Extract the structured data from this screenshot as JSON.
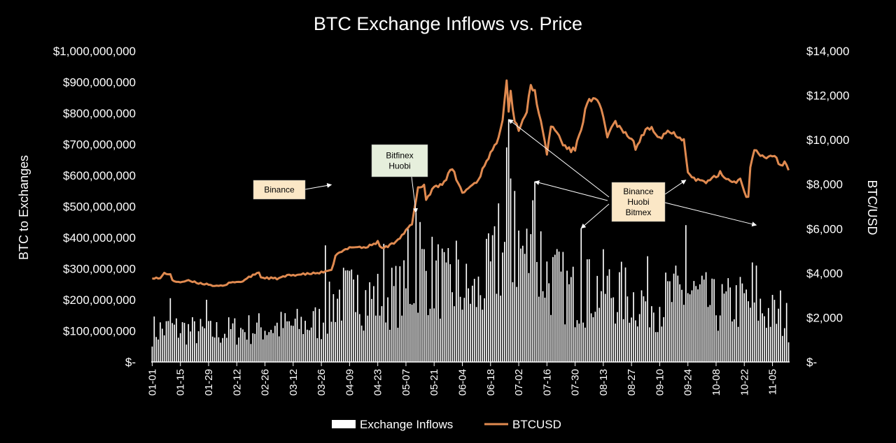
{
  "colors": {
    "background": "#000000",
    "bars": "#ffffff",
    "price_line": "#e08a50",
    "annotation_fill": "#fbe7c6",
    "annotation_fill_alt": "#e6efdc",
    "text": "#ffffff"
  },
  "chart_data": {
    "type": "bar",
    "combo": "bar-line",
    "title": "BTC Exchange Inflows vs. Price",
    "ylabel": "BTC to Exchanges",
    "y2label": "BTC/USD",
    "ylim": [
      0,
      1000000000
    ],
    "y2lim": [
      0,
      14000
    ],
    "grid": false,
    "legend_position": "bottom",
    "y_ticks": [
      "$-",
      "$100,000,000",
      "$200,000,000",
      "$300,000,000",
      "$400,000,000",
      "$500,000,000",
      "$600,000,000",
      "$700,000,000",
      "$800,000,000",
      "$900,000,000",
      "$1,000,000,000"
    ],
    "y2_ticks": [
      "$-",
      "$2,000",
      "$4,000",
      "$6,000",
      "$8,000",
      "$10,000",
      "$12,000",
      "$14,000"
    ],
    "x_ticks": [
      "01-01",
      "01-15",
      "01-29",
      "02-12",
      "02-26",
      "03-12",
      "03-26",
      "04-09",
      "04-23",
      "05-07",
      "05-21",
      "06-04",
      "06-18",
      "07-02",
      "07-16",
      "07-30",
      "08-13",
      "08-27",
      "09-10",
      "09-24",
      "10-08",
      "10-22",
      "11-05"
    ],
    "x_start": "2019-01-01",
    "x_end": "2019-11-13",
    "series": [
      {
        "name": "Exchange Inflows",
        "type": "bar",
        "axis": "left",
        "profile": [
          [
            "2019-01-01",
            110000000
          ],
          [
            "2019-01-15",
            115000000
          ],
          [
            "2019-01-29",
            100000000
          ],
          [
            "2019-02-12",
            110000000
          ],
          [
            "2019-02-26",
            120000000
          ],
          [
            "2019-03-12",
            125000000
          ],
          [
            "2019-03-26",
            140000000
          ],
          [
            "2019-04-03",
            230000000
          ],
          [
            "2019-04-23",
            220000000
          ],
          [
            "2019-05-07",
            240000000
          ],
          [
            "2019-05-14",
            330000000
          ],
          [
            "2019-05-28",
            270000000
          ],
          [
            "2019-06-11",
            230000000
          ],
          [
            "2019-06-20",
            330000000
          ],
          [
            "2019-06-27",
            420000000
          ],
          [
            "2019-07-04",
            380000000
          ],
          [
            "2019-07-16",
            300000000
          ],
          [
            "2019-07-30",
            230000000
          ],
          [
            "2019-08-13",
            260000000
          ],
          [
            "2019-08-27",
            220000000
          ],
          [
            "2019-09-10",
            210000000
          ],
          [
            "2019-09-24",
            240000000
          ],
          [
            "2019-10-08",
            190000000
          ],
          [
            "2019-10-22",
            210000000
          ],
          [
            "2019-11-13",
            140000000
          ]
        ],
        "spikes": [
          [
            "2019-01-10",
            205000000
          ],
          [
            "2019-01-28",
            200000000
          ],
          [
            "2019-03-28",
            375000000
          ],
          [
            "2019-04-13",
            280000000
          ],
          [
            "2019-04-26",
            380000000
          ],
          [
            "2019-05-08",
            430000000
          ],
          [
            "2019-05-12",
            480000000
          ],
          [
            "2019-05-14",
            450000000
          ],
          [
            "2019-05-27",
            320000000
          ],
          [
            "2019-06-01",
            390000000
          ],
          [
            "2019-06-22",
            510000000
          ],
          [
            "2019-06-26",
            690000000
          ],
          [
            "2019-06-27",
            780000000
          ],
          [
            "2019-06-28",
            590000000
          ],
          [
            "2019-06-30",
            550000000
          ],
          [
            "2019-07-09",
            520000000
          ],
          [
            "2019-07-10",
            580000000
          ],
          [
            "2019-07-13",
            420000000
          ],
          [
            "2019-08-02",
            430000000
          ],
          [
            "2019-08-05",
            330000000
          ],
          [
            "2019-09-04",
            340000000
          ],
          [
            "2019-09-23",
            440000000
          ],
          [
            "2019-10-26",
            320000000
          ],
          [
            "2019-10-28",
            310000000
          ],
          [
            "2019-11-09",
            230000000
          ]
        ]
      },
      {
        "name": "BTCUSD",
        "type": "line",
        "axis": "right",
        "points": [
          [
            "2019-01-01",
            3800
          ],
          [
            "2019-01-05",
            3750
          ],
          [
            "2019-01-07",
            4000
          ],
          [
            "2019-01-10",
            3950
          ],
          [
            "2019-01-11",
            3650
          ],
          [
            "2019-01-15",
            3600
          ],
          [
            "2019-01-19",
            3650
          ],
          [
            "2019-01-24",
            3550
          ],
          [
            "2019-01-29",
            3500
          ],
          [
            "2019-02-02",
            3400
          ],
          [
            "2019-02-07",
            3450
          ],
          [
            "2019-02-08",
            3600
          ],
          [
            "2019-02-14",
            3600
          ],
          [
            "2019-02-19",
            3850
          ],
          [
            "2019-02-23",
            4050
          ],
          [
            "2019-02-24",
            3800
          ],
          [
            "2019-03-04",
            3750
          ],
          [
            "2019-03-10",
            3900
          ],
          [
            "2019-03-17",
            3950
          ],
          [
            "2019-03-24",
            4000
          ],
          [
            "2019-03-31",
            4100
          ],
          [
            "2019-04-02",
            4800
          ],
          [
            "2019-04-10",
            5200
          ],
          [
            "2019-04-17",
            5150
          ],
          [
            "2019-04-23",
            5400
          ],
          [
            "2019-04-25",
            5100
          ],
          [
            "2019-04-30",
            5300
          ],
          [
            "2019-05-05",
            5700
          ],
          [
            "2019-05-10",
            6200
          ],
          [
            "2019-05-13",
            7800
          ],
          [
            "2019-05-16",
            8000
          ],
          [
            "2019-05-17",
            7300
          ],
          [
            "2019-05-21",
            7900
          ],
          [
            "2019-05-25",
            8000
          ],
          [
            "2019-05-30",
            8700
          ],
          [
            "2019-06-04",
            7600
          ],
          [
            "2019-06-08",
            7900
          ],
          [
            "2019-06-12",
            8200
          ],
          [
            "2019-06-16",
            9100
          ],
          [
            "2019-06-21",
            9800
          ],
          [
            "2019-06-24",
            11000
          ],
          [
            "2019-06-26",
            12800
          ],
          [
            "2019-06-27",
            11300
          ],
          [
            "2019-06-28",
            12200
          ],
          [
            "2019-06-30",
            10800
          ],
          [
            "2019-07-02",
            10500
          ],
          [
            "2019-07-06",
            11300
          ],
          [
            "2019-07-08",
            12400
          ],
          [
            "2019-07-10",
            12200
          ],
          [
            "2019-07-12",
            11200
          ],
          [
            "2019-07-14",
            10300
          ],
          [
            "2019-07-16",
            9400
          ],
          [
            "2019-07-18",
            10600
          ],
          [
            "2019-07-20",
            10500
          ],
          [
            "2019-07-24",
            9800
          ],
          [
            "2019-07-28",
            9500
          ],
          [
            "2019-07-30",
            9600
          ],
          [
            "2019-08-02",
            10500
          ],
          [
            "2019-08-05",
            11700
          ],
          [
            "2019-08-09",
            11800
          ],
          [
            "2019-08-12",
            11400
          ],
          [
            "2019-08-15",
            10200
          ],
          [
            "2019-08-19",
            10800
          ],
          [
            "2019-08-23",
            10300
          ],
          [
            "2019-08-27",
            10100
          ],
          [
            "2019-08-29",
            9600
          ],
          [
            "2019-09-02",
            10300
          ],
          [
            "2019-09-06",
            10600
          ],
          [
            "2019-09-10",
            10100
          ],
          [
            "2019-09-14",
            10400
          ],
          [
            "2019-09-19",
            10200
          ],
          [
            "2019-09-22",
            10000
          ],
          [
            "2019-09-24",
            8600
          ],
          [
            "2019-09-28",
            8200
          ],
          [
            "2019-10-04",
            8100
          ],
          [
            "2019-10-10",
            8500
          ],
          [
            "2019-10-16",
            8100
          ],
          [
            "2019-10-20",
            8200
          ],
          [
            "2019-10-23",
            7500
          ],
          [
            "2019-10-24",
            7400
          ],
          [
            "2019-10-25",
            8700
          ],
          [
            "2019-10-27",
            9500
          ],
          [
            "2019-11-01",
            9200
          ],
          [
            "2019-11-05",
            9300
          ],
          [
            "2019-11-07",
            9200
          ],
          [
            "2019-11-09",
            8800
          ],
          [
            "2019-11-11",
            9000
          ],
          [
            "2019-11-13",
            8700
          ]
        ]
      }
    ],
    "annotations": [
      {
        "lines": [
          "Binance"
        ],
        "target": [
          "2019-03-31",
          570000000
        ]
      },
      {
        "lines": [
          "Bitfinex",
          "Huobi"
        ],
        "target": [
          "2019-05-12",
          480000000
        ]
      },
      {
        "lines": [
          "Binance",
          "Huobi",
          "Bitmex"
        ],
        "targets": [
          [
            "2019-06-27",
            780000000
          ],
          [
            "2019-07-10",
            580000000
          ],
          [
            "2019-08-02",
            430000000
          ],
          [
            "2019-09-23",
            585000000
          ],
          [
            "2019-10-28",
            440000000
          ]
        ]
      }
    ]
  }
}
